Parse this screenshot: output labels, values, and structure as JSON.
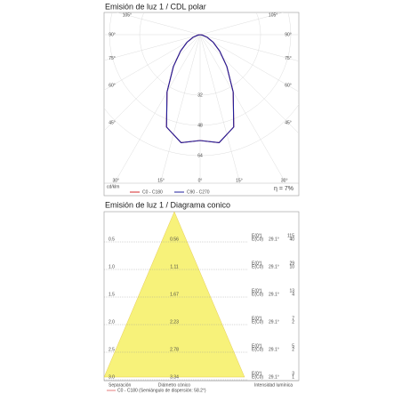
{
  "chart_data": [
    {
      "type": "polar",
      "title": "Emisión de luz 1 / CDL polar",
      "unit": "cd/klm",
      "efficiency": "η = 7%",
      "x": [
        -90,
        -80,
        -70,
        -60,
        -50,
        -40,
        -30,
        -20,
        -10,
        0,
        10,
        20,
        30,
        40,
        50,
        60,
        70,
        80,
        90
      ],
      "series": [
        {
          "name": "C0 - C180",
          "color": "#d62728",
          "values": [
            0,
            1.2,
            4,
            8,
            13.5,
            22,
            35,
            52,
            58,
            56,
            58,
            52,
            35,
            22,
            13.5,
            8,
            4,
            1.2,
            0
          ]
        },
        {
          "name": "C90 - C270",
          "color": "#1f1f9c",
          "values": [
            0,
            1.2,
            4,
            8,
            13.5,
            22,
            35,
            52,
            58,
            56,
            58,
            52,
            35,
            22,
            13.5,
            8,
            4,
            1.2,
            0
          ]
        }
      ],
      "rticks": [
        32,
        48,
        64
      ],
      "angle_ticks": [
        {
          "value": 105,
          "label": "105°"
        },
        {
          "value": 90,
          "label": "90°"
        },
        {
          "value": 75,
          "label": "75°"
        },
        {
          "value": 60,
          "label": "60°"
        },
        {
          "value": 45,
          "label": "45°"
        },
        {
          "value": 30,
          "label": "30°"
        },
        {
          "value": 15,
          "label": "15°"
        },
        {
          "value": 0,
          "label": "0°"
        }
      ]
    },
    {
      "type": "cone",
      "title": "Emisión de luz 1 / Diagrama conico",
      "color": "#f7f27a",
      "separation": [
        {
          "value": 0.5,
          "label": "0.5"
        },
        {
          "value": 1,
          "label": "1.0"
        },
        {
          "value": 1.5,
          "label": "1.5"
        },
        {
          "value": 2,
          "label": "2.0"
        },
        {
          "value": 2.5,
          "label": "2.5"
        },
        {
          "value": 3,
          "label": "3.0"
        }
      ],
      "diameter": [
        0.56,
        1.11,
        1.67,
        2.23,
        2.78,
        3.34
      ],
      "e0": [
        115,
        29,
        13,
        7,
        5,
        3
      ],
      "ec0": [
        40,
        10,
        4,
        2,
        2,
        1
      ],
      "e0_label": "E(0°)",
      "ec0_label": "E(C0)",
      "angle_label": "29.1°",
      "footer": {
        "col1": "Separación",
        "col2": "Diámetro cónico",
        "col3": "Intensidad lumínica",
        "legend": "C0 - C180 (Semiángulo de dispersión: 58.2°)"
      }
    }
  ]
}
